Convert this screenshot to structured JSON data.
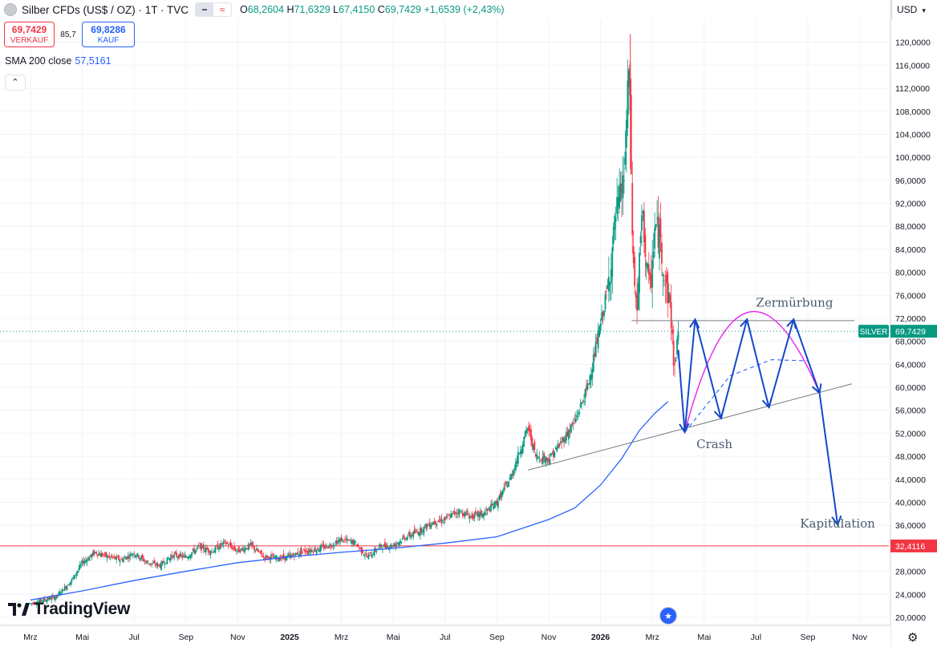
{
  "header": {
    "symbol_title": "Silber CFDs (US$ / OZ) · 1T · TVC",
    "ohlc": {
      "o_label": "O",
      "o": "68,2604",
      "h_label": "H",
      "h": "71,6329",
      "l_label": "L",
      "l": "67,4150",
      "c_label": "C",
      "c": "69,7429",
      "change": "+1,6539 (+2,43%)"
    },
    "minus_label": "−",
    "wave_label": "≈"
  },
  "trade": {
    "sell_price": "69,7429",
    "sell_label": "VERKAUF",
    "spread": "85,7",
    "buy_price": "69,8286",
    "buy_label": "KAUF"
  },
  "indicator": {
    "label": "SMA 200 close",
    "value": "57,5161"
  },
  "collapse_label": "⌃",
  "currency": "USD",
  "logo_text": "TradingView",
  "colors": {
    "up": "#089981",
    "down": "#f23645",
    "sma": "#2962ff",
    "arrows": "#1448c8",
    "arc": "#e91ef0",
    "hline": "#f23645"
  },
  "chart_data": {
    "type": "candlestick",
    "series_name": "SILVER",
    "last_price_label": "SILVER",
    "last_price": "69,7429",
    "hline_value": 32.4116,
    "hline_label": "32,4116",
    "ylim": [
      18.6,
      124.0
    ],
    "y_ticks": [
      "20,0000",
      "24,0000",
      "28,0000",
      "32,0000",
      "36,0000",
      "40,0000",
      "44,0000",
      "48,0000",
      "52,0000",
      "56,0000",
      "60,0000",
      "64,0000",
      "68,0000",
      "72,0000",
      "76,0000",
      "80,0000",
      "84,0000",
      "88,0000",
      "92,0000",
      "96,0000",
      "100,0000",
      "104,0000",
      "108,0000",
      "112,0000",
      "116,0000",
      "120,0000"
    ],
    "x_ticks": [
      "Mrz",
      "Mai",
      "Jul",
      "Sep",
      "Nov",
      "2025",
      "Mrz",
      "Mai",
      "Jul",
      "Sep",
      "Nov",
      "2026",
      "Mrz",
      "Mai",
      "Jul",
      "Sep",
      "Nov"
    ],
    "x_tick_index": [
      0,
      2,
      4,
      6,
      8,
      10,
      12,
      14,
      16,
      18,
      20,
      22,
      24,
      26,
      28,
      30,
      32
    ],
    "price_path": [
      [
        0,
        22.4
      ],
      [
        1,
        23.6
      ],
      [
        1.6,
        26.5
      ],
      [
        2,
        29.5
      ],
      [
        2.5,
        31.3
      ],
      [
        3,
        30.5
      ],
      [
        3.5,
        30.0
      ],
      [
        4,
        31.2
      ],
      [
        4.5,
        29.5
      ],
      [
        5,
        29.0
      ],
      [
        5.5,
        30.8
      ],
      [
        6,
        30.5
      ],
      [
        6.5,
        32.2
      ],
      [
        7,
        31.5
      ],
      [
        7.5,
        33.0
      ],
      [
        8,
        31.5
      ],
      [
        8.5,
        32.5
      ],
      [
        9,
        30.5
      ],
      [
        9.5,
        30.3
      ],
      [
        10,
        30.5
      ],
      [
        10.5,
        31.5
      ],
      [
        11,
        31.8
      ],
      [
        11.5,
        32.4
      ],
      [
        12,
        33.5
      ],
      [
        12.5,
        33.0
      ],
      [
        13,
        30.5
      ],
      [
        13.5,
        32.3
      ],
      [
        14,
        32.5
      ],
      [
        14.5,
        34.0
      ],
      [
        15,
        35.0
      ],
      [
        15.5,
        36.5
      ],
      [
        16,
        37.0
      ],
      [
        16.5,
        38.5
      ],
      [
        17,
        37.5
      ],
      [
        17.5,
        38.0
      ],
      [
        18,
        40.0
      ],
      [
        18.5,
        44.0
      ],
      [
        19,
        50.5
      ],
      [
        19.2,
        53.0
      ],
      [
        19.5,
        48.0
      ],
      [
        20,
        47.5
      ],
      [
        20.5,
        50.5
      ],
      [
        21,
        54.0
      ],
      [
        21.5,
        60.0
      ],
      [
        22,
        71.0
      ],
      [
        22.3,
        78.0
      ],
      [
        22.6,
        90.0
      ],
      [
        22.9,
        96.0
      ],
      [
        23.1,
        116.0
      ],
      [
        23.25,
        82.0
      ],
      [
        23.4,
        73.0
      ],
      [
        23.6,
        90.0
      ],
      [
        23.9,
        76.0
      ],
      [
        24.1,
        88.0
      ],
      [
        24.3,
        86.0
      ],
      [
        24.5,
        78.0
      ],
      [
        24.7,
        74.0
      ],
      [
        24.85,
        62.0
      ],
      [
        24.95,
        68.2
      ],
      [
        25,
        69.74
      ]
    ],
    "sma200": [
      [
        0,
        23.0
      ],
      [
        2,
        24.6
      ],
      [
        4,
        26.4
      ],
      [
        6,
        28.0
      ],
      [
        8,
        29.5
      ],
      [
        10,
        30.5
      ],
      [
        12,
        31.3
      ],
      [
        14,
        32.0
      ],
      [
        16,
        32.9
      ],
      [
        18,
        34.0
      ],
      [
        20,
        37.0
      ],
      [
        21,
        39.0
      ],
      [
        22,
        43.0
      ],
      [
        22.8,
        47.5
      ],
      [
        23.5,
        52.5
      ],
      [
        24.1,
        55.5
      ],
      [
        24.6,
        57.5
      ]
    ],
    "prices_high": 121.4,
    "wedge_support": [
      [
        19.2,
        45.6
      ],
      [
        31.7,
        60.6
      ]
    ],
    "wedge_top": [
      [
        23.2,
        71.6
      ],
      [
        31.8,
        71.6
      ]
    ],
    "forecast_arrows": [
      [
        [
          25,
          66.5
        ],
        [
          25.25,
          52.2
        ]
      ],
      [
        [
          25.25,
          52.2
        ],
        [
          25.65,
          71.8
        ]
      ],
      [
        [
          25.65,
          71.8
        ],
        [
          26.65,
          54.6
        ]
      ],
      [
        [
          26.65,
          54.6
        ],
        [
          27.65,
          71.8
        ]
      ],
      [
        [
          27.65,
          71.8
        ],
        [
          28.5,
          56.5
        ]
      ],
      [
        [
          28.5,
          56.5
        ],
        [
          29.45,
          71.8
        ]
      ],
      [
        [
          29.45,
          71.8
        ],
        [
          30.45,
          59.0
        ]
      ],
      [
        [
          30.45,
          59.0
        ],
        [
          31.15,
          36.1
        ]
      ]
    ],
    "projection_arc": [
      [
        25.25,
        52.2
      ],
      [
        27.5,
        71.8
      ],
      [
        30.45,
        59.0
      ]
    ],
    "projection_dashed": [
      [
        25.25,
        52.2
      ],
      [
        27.0,
        62.0
      ],
      [
        28.6,
        64.8
      ],
      [
        30.0,
        64.6
      ],
      [
        30.45,
        59.0
      ]
    ],
    "annotations": [
      {
        "text": "Zermürbung",
        "x": 28.0,
        "y": 74.0
      },
      {
        "text": "Crash",
        "x": 25.7,
        "y": 49.4
      },
      {
        "text": "Kapitulation",
        "x": 29.7,
        "y": 35.6
      }
    ]
  }
}
